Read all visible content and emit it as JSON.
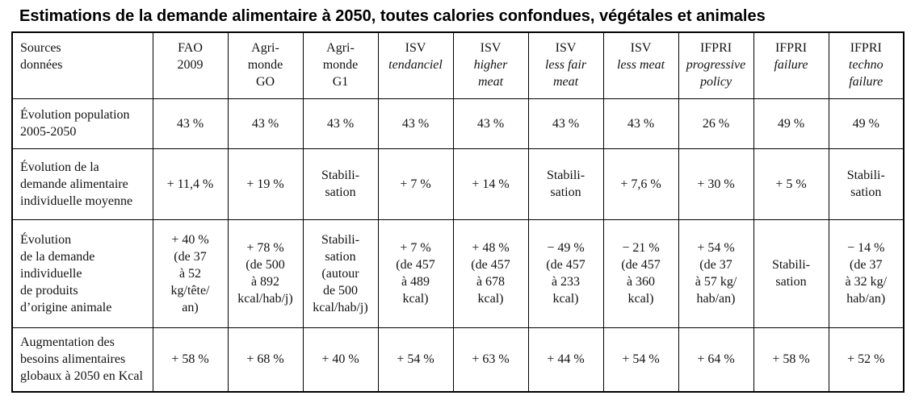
{
  "title": "Estimations de la demande alimentaire à 2050, toutes calories confondues, végétales et animales",
  "table": {
    "corner_label": "Sources\ndonnées",
    "columns": [
      {
        "roman": "FAO\n2009",
        "italic": ""
      },
      {
        "roman": "Agri-\nmonde\nGO",
        "italic": ""
      },
      {
        "roman": "Agri-\nmonde\nG1",
        "italic": ""
      },
      {
        "roman": "ISV",
        "italic": "tendanciel"
      },
      {
        "roman": "ISV",
        "italic": "higher\nmeat"
      },
      {
        "roman": "ISV",
        "italic": "less fair\nmeat"
      },
      {
        "roman": "ISV",
        "italic": "less meat"
      },
      {
        "roman": "IFPRI",
        "italic": "progressive\npolicy"
      },
      {
        "roman": "IFPRI",
        "italic": "failure"
      },
      {
        "roman": "IFPRI",
        "italic": "techno\nfailure"
      }
    ],
    "rows": [
      {
        "label": "Évolution population\n2005-2050",
        "values": [
          "43 %",
          "43 %",
          "43 %",
          "43 %",
          "43 %",
          "43 %",
          "43 %",
          "26 %",
          "49 %",
          "49 %"
        ]
      },
      {
        "label": "Évolution de la\ndemande alimentaire\nindividuelle moyenne",
        "values": [
          "+ 11,4 %",
          "+ 19 %",
          "Stabili-\nsation",
          "+ 7 %",
          "+ 14 %",
          "Stabili-\nsation",
          "+ 7,6 %",
          "+ 30 %",
          "+ 5 %",
          "Stabili-\nsation"
        ]
      },
      {
        "label": "Évolution\nde la demande\nindividuelle\nde produits\nd’origine animale",
        "values": [
          "+ 40 %\n(de 37\nà 52\nkg/tête/\nan)",
          "+ 78 %\n(de 500\nà 892\nkcal/hab/j)",
          "Stabili-\nsation\n(autour\nde 500\nkcal/hab/j)",
          "+ 7 %\n(de 457\nà 489\nkcal)",
          "+ 48 %\n(de 457\nà 678\nkcal)",
          "− 49 %\n(de 457\nà 233\nkcal)",
          "− 21 %\n(de 457\nà 360\nkcal)",
          "+ 54 %\n(de 37\nà 57 kg/\nhab/an)",
          "Stabili-\nsation",
          "− 14 %\n(de 37\nà 32 kg/\nhab/an)"
        ]
      },
      {
        "label": "Augmentation des\nbesoins alimentaires\nglobaux à 2050 en Kcal",
        "values": [
          "+ 58 %",
          "+ 68 %",
          "+ 40 %",
          "+ 54 %",
          "+ 63 %",
          "+ 44 %",
          "+ 54 %",
          "+ 64 %",
          "+ 58 %",
          "+ 52 %"
        ]
      }
    ]
  }
}
